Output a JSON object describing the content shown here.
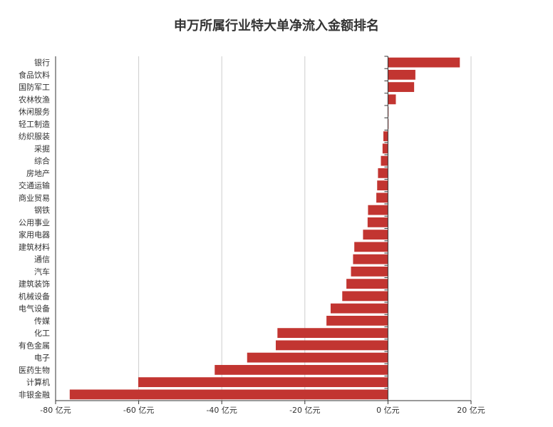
{
  "chart_data": {
    "type": "bar",
    "orientation": "horizontal",
    "title": "申万所属行业特大单净流入金额排名",
    "categories": [
      "银行",
      "食品饮料",
      "国防军工",
      "农林牧渔",
      "休闲服务",
      "轻工制造",
      "纺织服装",
      "采掘",
      "综合",
      "房地产",
      "交通运输",
      "商业贸易",
      "钢铁",
      "公用事业",
      "家用电器",
      "建筑材料",
      "通信",
      "汽车",
      "建筑装饰",
      "机械设备",
      "电气设备",
      "传媒",
      "化工",
      "有色金属",
      "电子",
      "医药生物",
      "计算机",
      "非银金融"
    ],
    "values": [
      17.3,
      6.6,
      6.3,
      1.9,
      0.1,
      0.1,
      -1.1,
      -1.3,
      -1.7,
      -2.4,
      -2.6,
      -2.8,
      -4.8,
      -4.9,
      -6.0,
      -8.1,
      -8.4,
      -8.9,
      -10.0,
      -11.0,
      -13.8,
      -14.8,
      -26.6,
      -27.0,
      -33.9,
      -41.7,
      -60.1,
      -76.6
    ],
    "xlim": [
      -80,
      20
    ],
    "xticks": [
      -80,
      -60,
      -40,
      -20,
      0,
      20
    ],
    "xtick_labels": [
      "-80 亿元",
      "-60 亿元",
      "-40 亿元",
      "-20 亿元",
      "0 亿元",
      "20 亿元"
    ],
    "xlabel": "",
    "ylabel": "",
    "grid": true,
    "bar_color": "#c23531"
  }
}
